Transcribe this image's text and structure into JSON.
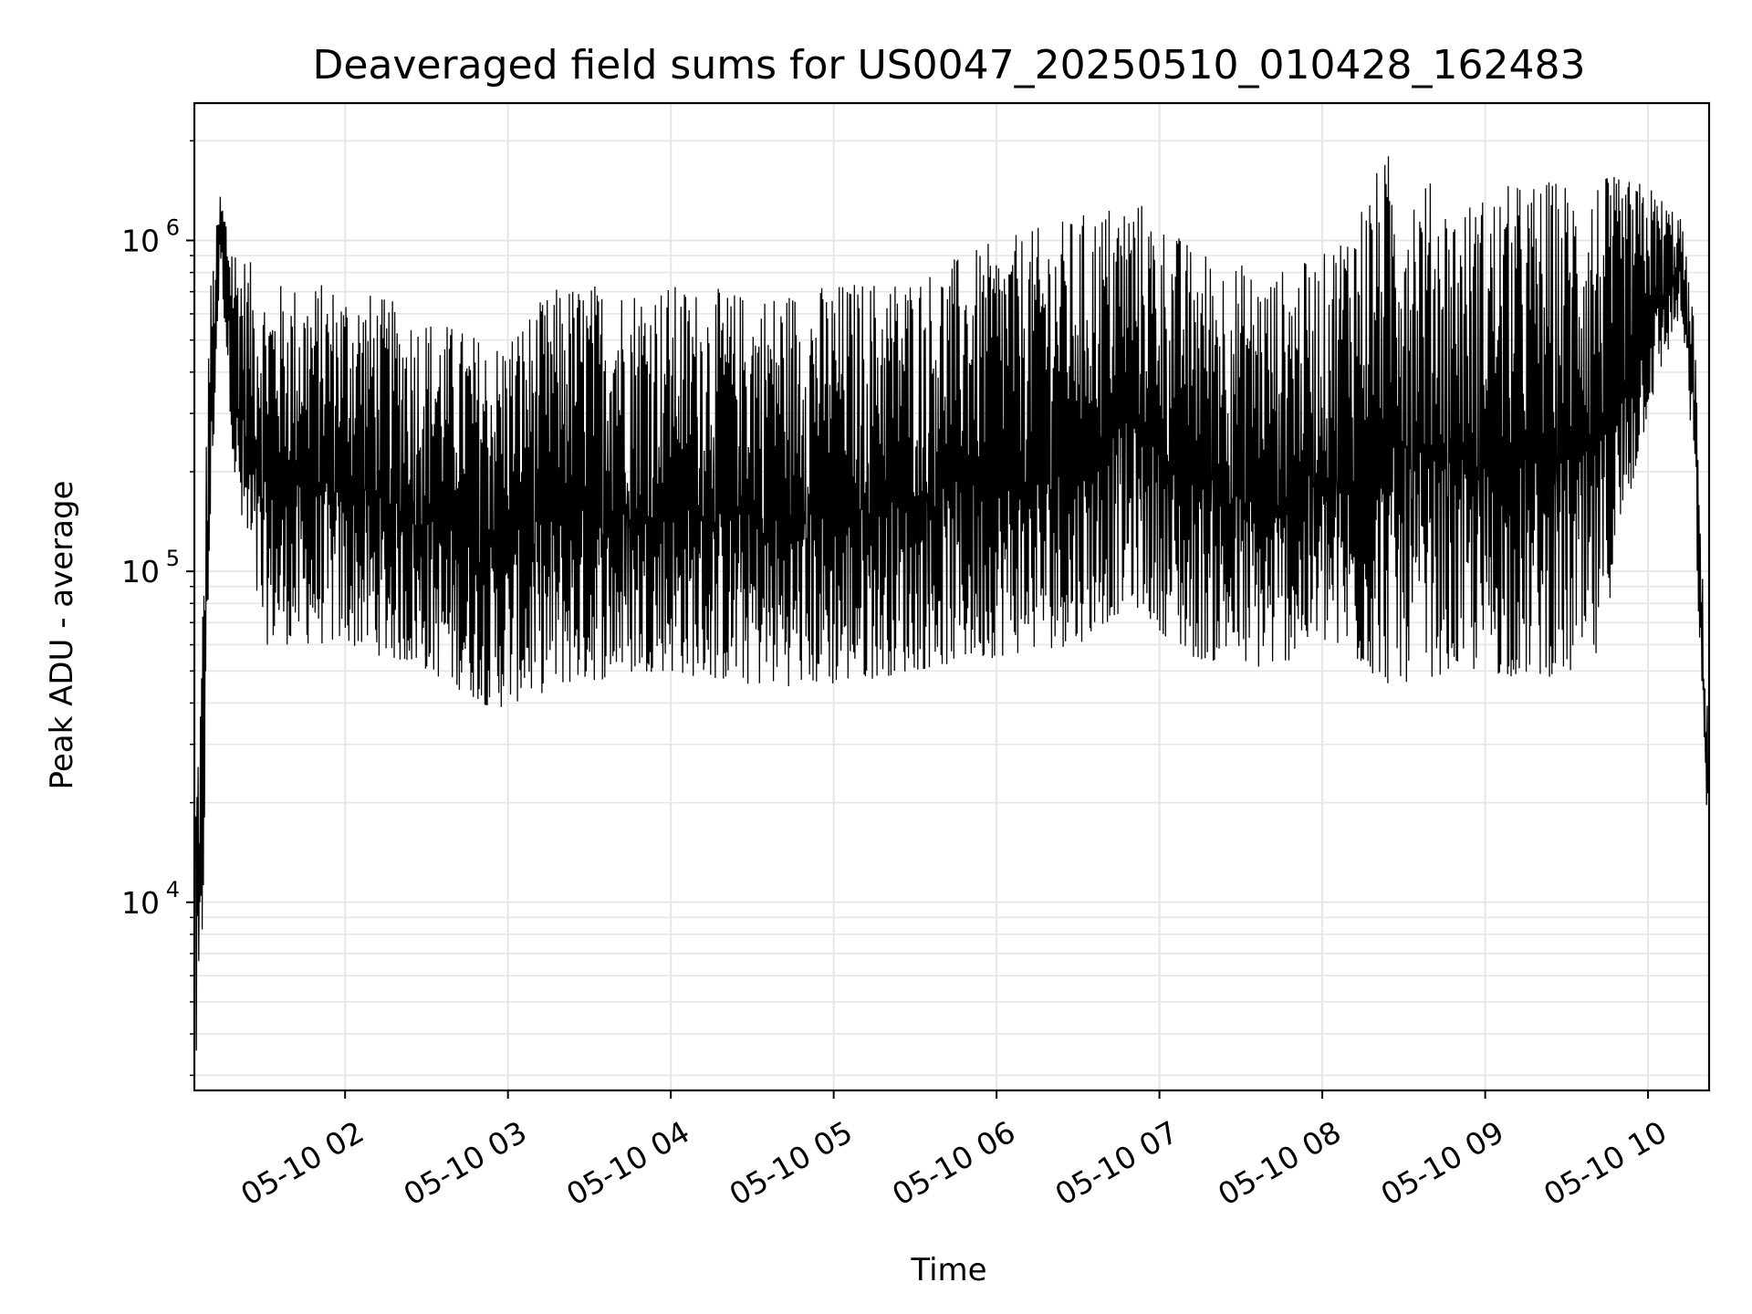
{
  "chart_data": {
    "type": "line",
    "title": "Deaveraged field sums for US0047_20250510_010428_162483",
    "xlabel": "Time",
    "ylabel": "Peak ADU - average",
    "yscale": "log",
    "ylim": [
      2700,
      2600000
    ],
    "xlim": [
      "2025-05-10 01:04:28",
      "2025-05-10 10:22:30"
    ],
    "grid": true,
    "line_color": "#000000",
    "grid_color": "#e6e6e6",
    "x_ticks": [
      {
        "time": "2025-05-10 02:00",
        "label": "05-10 02"
      },
      {
        "time": "2025-05-10 03:00",
        "label": "05-10 03"
      },
      {
        "time": "2025-05-10 04:00",
        "label": "05-10 04"
      },
      {
        "time": "2025-05-10 05:00",
        "label": "05-10 05"
      },
      {
        "time": "2025-05-10 06:00",
        "label": "05-10 06"
      },
      {
        "time": "2025-05-10 07:00",
        "label": "05-10 07"
      },
      {
        "time": "2025-05-10 08:00",
        "label": "05-10 08"
      },
      {
        "time": "2025-05-10 09:00",
        "label": "05-10 09"
      },
      {
        "time": "2025-05-10 10:00",
        "label": "05-10 10"
      }
    ],
    "y_ticks": [
      {
        "value": 10000,
        "base": "10",
        "exp": "4"
      },
      {
        "value": 100000,
        "base": "10",
        "exp": "5"
      },
      {
        "value": 1000000,
        "base": "10",
        "exp": "6"
      }
    ],
    "envelope": {
      "note": "dense series; lower and upper extent of the trace in each time window",
      "points": [
        {
          "t": "2025-05-10 01:05",
          "low": 2800,
          "high": 25000
        },
        {
          "t": "2025-05-10 01:07",
          "low": 4500,
          "high": 55000
        },
        {
          "t": "2025-05-10 01:10",
          "low": 100000,
          "high": 700000
        },
        {
          "t": "2025-05-10 01:14",
          "low": 900000,
          "high": 1400000
        },
        {
          "t": "2025-05-10 01:20",
          "low": 150000,
          "high": 1000000
        },
        {
          "t": "2025-05-10 01:30",
          "low": 60000,
          "high": 750000
        },
        {
          "t": "2025-05-10 02:00",
          "low": 60000,
          "high": 750000
        },
        {
          "t": "2025-05-10 02:30",
          "low": 50000,
          "high": 600000
        },
        {
          "t": "2025-05-10 02:55",
          "low": 38000,
          "high": 500000
        },
        {
          "t": "2025-05-10 03:20",
          "low": 45000,
          "high": 750000
        },
        {
          "t": "2025-05-10 03:55",
          "low": 50000,
          "high": 750000
        },
        {
          "t": "2025-05-10 04:30",
          "low": 45000,
          "high": 700000
        },
        {
          "t": "2025-05-10 05:00",
          "low": 45000,
          "high": 750000
        },
        {
          "t": "2025-05-10 05:30",
          "low": 50000,
          "high": 800000
        },
        {
          "t": "2025-05-10 06:00",
          "low": 55000,
          "high": 1000000
        },
        {
          "t": "2025-05-10 06:30",
          "low": 60000,
          "high": 1200000
        },
        {
          "t": "2025-05-10 06:50",
          "low": 80000,
          "high": 1400000
        },
        {
          "t": "2025-05-10 07:10",
          "low": 55000,
          "high": 1000000
        },
        {
          "t": "2025-05-10 07:40",
          "low": 50000,
          "high": 800000
        },
        {
          "t": "2025-05-10 08:00",
          "low": 60000,
          "high": 900000
        },
        {
          "t": "2025-05-10 08:25",
          "low": 45000,
          "high": 1900000
        },
        {
          "t": "2025-05-10 08:50",
          "low": 50000,
          "high": 1300000
        },
        {
          "t": "2025-05-10 09:10",
          "low": 48000,
          "high": 1500000
        },
        {
          "t": "2025-05-10 09:40",
          "low": 48000,
          "high": 1600000
        },
        {
          "t": "2025-05-10 10:00",
          "low": 300000,
          "high": 1500000
        },
        {
          "t": "2025-05-10 10:12",
          "low": 600000,
          "high": 1200000
        },
        {
          "t": "2025-05-10 10:17",
          "low": 200000,
          "high": 600000
        },
        {
          "t": "2025-05-10 10:20",
          "low": 30000,
          "high": 100000
        },
        {
          "t": "2025-05-10 10:22",
          "low": 17000,
          "high": 40000
        }
      ]
    }
  }
}
